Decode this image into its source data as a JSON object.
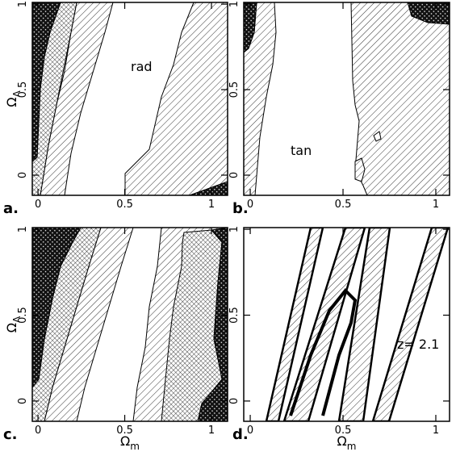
{
  "chart_data": [
    {
      "type": "contour",
      "panel_label": "a.",
      "annotation": "rad",
      "xlim": [
        -0.033,
        1.093
      ],
      "ylim": [
        -0.118,
        1.01
      ],
      "xticks": [
        0,
        0.5,
        1
      ],
      "yticks": [
        0,
        0.5,
        1
      ],
      "ylabel": {
        "base": "Ω",
        "sub": "Λ"
      }
    },
    {
      "type": "contour",
      "panel_label": "b.",
      "annotation": "tan",
      "xlim": [
        -0.035,
        1.074
      ],
      "ylim": [
        -0.118,
        1.01
      ],
      "xticks": [
        0,
        0.5,
        1
      ],
      "yticks": [
        0,
        0.5,
        1
      ]
    },
    {
      "type": "contour",
      "panel_label": "c.",
      "xlim": [
        -0.033,
        1.093
      ],
      "ylim": [
        -0.118,
        1.01
      ],
      "xticks": [
        0,
        0.5,
        1
      ],
      "yticks": [
        0,
        0.5,
        1
      ],
      "ylabel": {
        "base": "Ω",
        "sub": "Λ"
      },
      "xlabel": {
        "base": "Ω",
        "sub": "m"
      }
    },
    {
      "type": "contour",
      "panel_label": "d.",
      "annotation": "z= 2.1",
      "xlim": [
        -0.035,
        1.074
      ],
      "ylim": [
        -0.118,
        1.01
      ],
      "xticks": [
        0,
        0.5,
        1
      ],
      "yticks": [
        0,
        0.5,
        1
      ],
      "xlabel": {
        "base": "Ω",
        "sub": "m"
      }
    }
  ]
}
